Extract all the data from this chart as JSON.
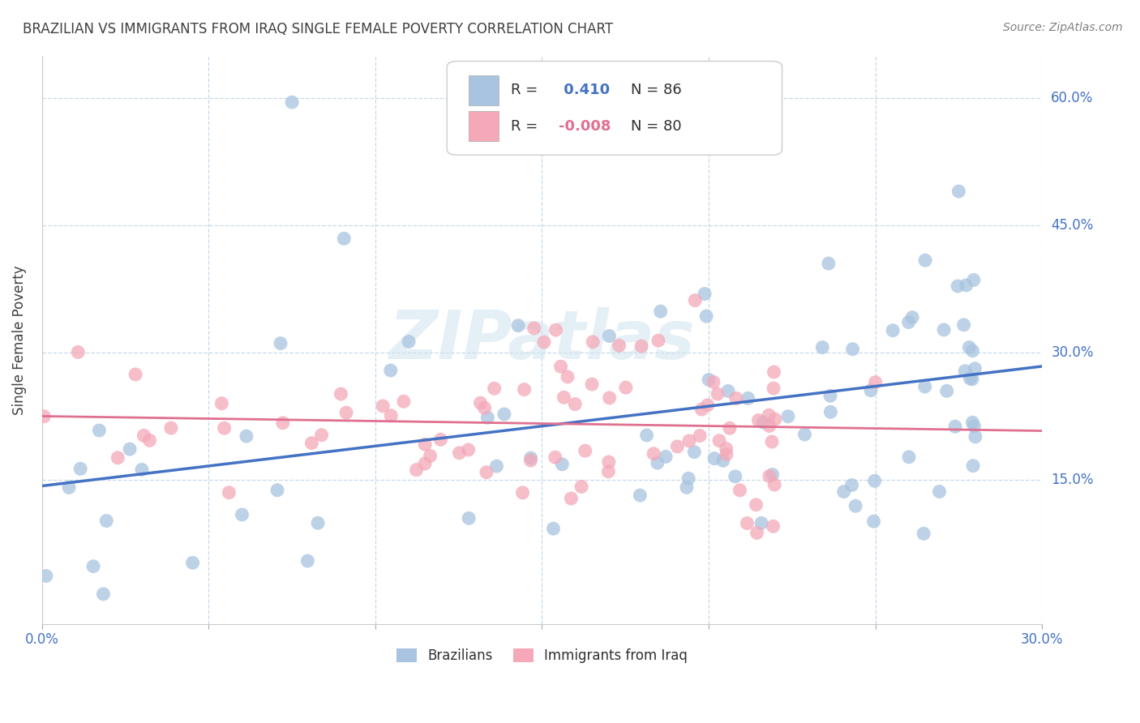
{
  "title": "BRAZILIAN VS IMMIGRANTS FROM IRAQ SINGLE FEMALE POVERTY CORRELATION CHART",
  "source": "Source: ZipAtlas.com",
  "ylabel": "Single Female Poverty",
  "watermark": "ZIPatlas",
  "xlim": [
    0.0,
    0.3
  ],
  "ylim": [
    -0.02,
    0.65
  ],
  "xtick_positions": [
    0.0,
    0.05,
    0.1,
    0.15,
    0.2,
    0.25,
    0.3
  ],
  "xtick_labels": [
    "0.0%",
    "",
    "",
    "",
    "",
    "",
    "30.0%"
  ],
  "ytick_positions": [
    0.15,
    0.3,
    0.45,
    0.6
  ],
  "ytick_labels": [
    "15.0%",
    "30.0%",
    "45.0%",
    "60.0%"
  ],
  "R_brazil": 0.41,
  "N_brazil": 86,
  "R_iraq": -0.008,
  "N_iraq": 80,
  "brazil_color": "#a8c4e0",
  "iraq_color": "#f4a8b8",
  "brazil_line_color": "#4472c4",
  "iraq_line_color": "#e07090",
  "grid_color": "#c8d8e8",
  "background_color": "#ffffff",
  "title_color": "#404040",
  "source_color": "#808080",
  "axis_label_color": "#4472c4",
  "legend_text_color": "#303030"
}
